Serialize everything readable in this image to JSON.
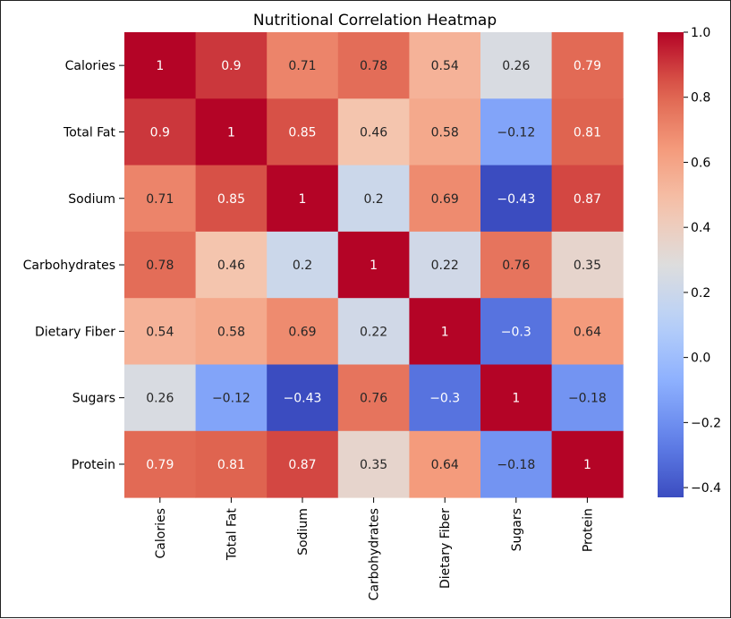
{
  "chart_data": {
    "type": "heatmap",
    "title": "Nutritional Correlation Heatmap",
    "xlabel": "",
    "ylabel": "",
    "categories": [
      "Calories",
      "Total Fat",
      "Sodium",
      "Carbohydrates",
      "Dietary Fiber",
      "Sugars",
      "Protein"
    ],
    "matrix": [
      [
        1,
        0.9,
        0.71,
        0.78,
        0.54,
        0.26,
        0.79
      ],
      [
        0.9,
        1,
        0.85,
        0.46,
        0.58,
        -0.12,
        0.81
      ],
      [
        0.71,
        0.85,
        1,
        0.2,
        0.69,
        -0.43,
        0.87
      ],
      [
        0.78,
        0.46,
        0.2,
        1,
        0.22,
        0.76,
        0.35
      ],
      [
        0.54,
        0.58,
        0.69,
        0.22,
        1,
        -0.3,
        0.64
      ],
      [
        0.26,
        -0.12,
        -0.43,
        0.76,
        -0.3,
        1,
        -0.18
      ],
      [
        0.79,
        0.81,
        0.87,
        0.35,
        0.64,
        -0.18,
        1
      ]
    ],
    "colormap": "coolwarm",
    "colorbar": {
      "range": [
        -0.43,
        1
      ],
      "ticks": [
        1.0,
        0.8,
        0.6,
        0.4,
        0.2,
        0.0,
        -0.2,
        -0.4
      ],
      "tick_labels": [
        "1.0",
        "0.8",
        "0.6",
        "0.4",
        "0.2",
        "0.0",
        "−0.2",
        "−0.4"
      ]
    },
    "annotated": true,
    "grid": false
  }
}
